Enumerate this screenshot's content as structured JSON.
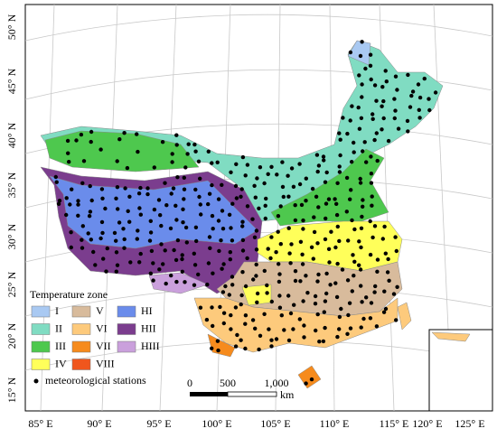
{
  "map": {
    "lon_labels": [
      "85° E",
      "90° E",
      "95° E",
      "100° E",
      "105° E",
      "110° E",
      "115° E",
      "120° E",
      "125° E"
    ],
    "lat_labels": [
      "50° N",
      "45° N",
      "40° N",
      "35° N",
      "30° N",
      "25° N",
      "20° N",
      "15° N"
    ],
    "legend": {
      "title": "Temperature zone",
      "items": [
        {
          "label": "I",
          "color": "#a9c9f2"
        },
        {
          "label": "II",
          "color": "#80dcc2"
        },
        {
          "label": "III",
          "color": "#4ec84e"
        },
        {
          "label": "IV",
          "color": "#ffff5a"
        },
        {
          "label": "V",
          "color": "#d8bb9c"
        },
        {
          "label": "VI",
          "color": "#fdca7c"
        },
        {
          "label": "VII",
          "color": "#f68b1d"
        },
        {
          "label": "VIII",
          "color": "#f0561d"
        },
        {
          "label": "HI",
          "color": "#6a8ceb"
        },
        {
          "label": "HII",
          "color": "#7b3d8e"
        },
        {
          "label": "HIII",
          "color": "#caa0dc"
        }
      ],
      "stations": "meteorological stations"
    },
    "scale_bar": {
      "labels": [
        "0",
        "500",
        "1,000"
      ],
      "unit": "km"
    }
  }
}
